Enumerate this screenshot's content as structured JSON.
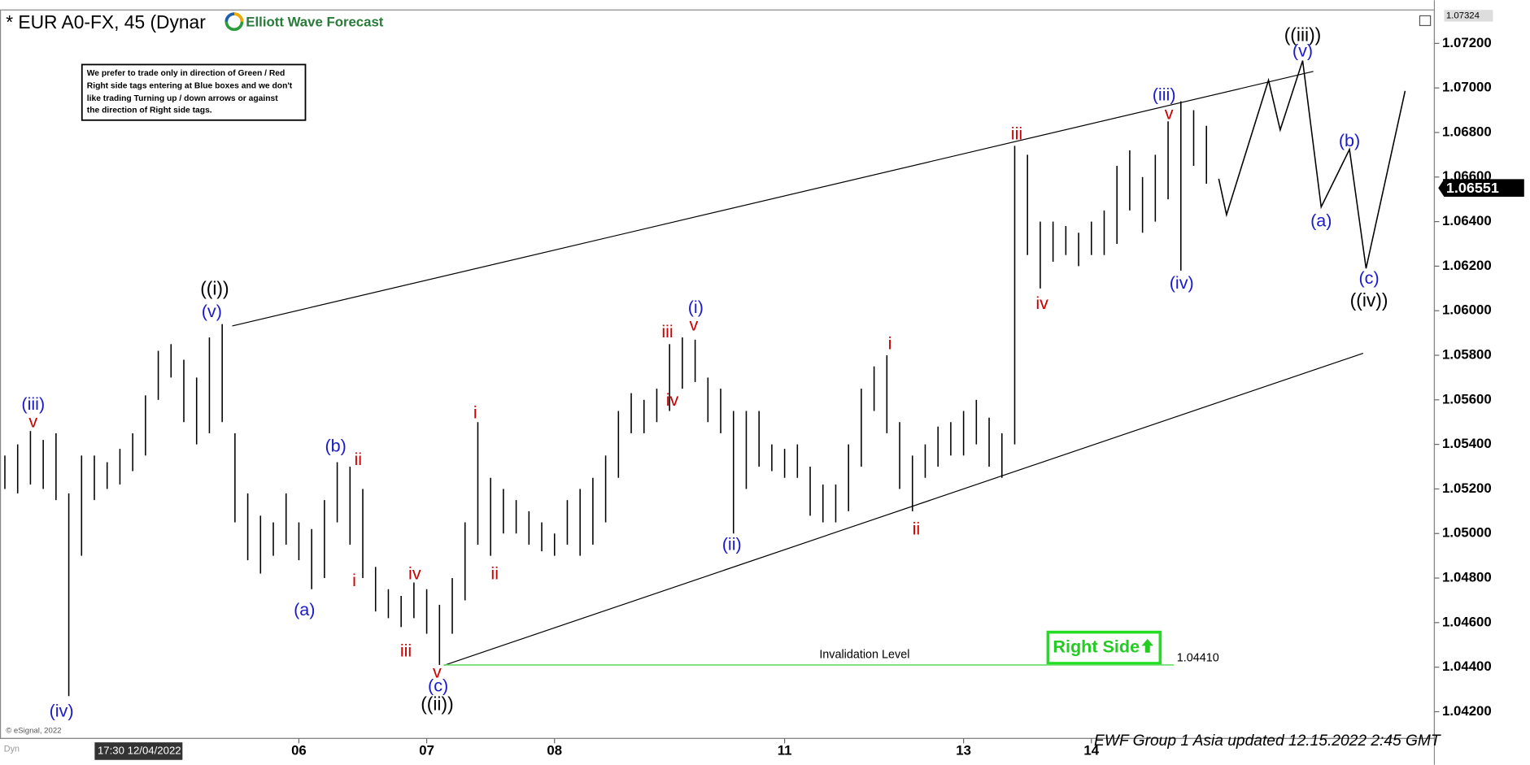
{
  "chart_data": {
    "type": "hilo",
    "title": "* EUR A0-FX, 45 (Dynar",
    "logo_text": "Elliott Wave Forecast",
    "note": [
      "We prefer to trade only in direction of Green / Red",
      "Right side tags entering at Blue boxes and we don't",
      "like trading Turning up / down arrows or against",
      "the direction of Right side tags."
    ],
    "bar_color": "#000000",
    "categories": [
      null,
      null,
      null,
      null,
      null,
      null,
      null,
      null,
      null,
      null,
      null,
      null,
      null,
      null,
      null,
      null,
      null,
      null,
      null,
      null,
      null,
      null,
      null,
      "06",
      null,
      null,
      null,
      null,
      null,
      null,
      null,
      null,
      null,
      "07",
      null,
      null,
      null,
      null,
      null,
      null,
      null,
      null,
      null,
      "08",
      null,
      null,
      null,
      null,
      null,
      null,
      null,
      null,
      null,
      null,
      null,
      null,
      null,
      null,
      null,
      null,
      null,
      "11",
      null,
      null,
      null,
      null,
      null,
      null,
      null,
      null,
      null,
      null,
      null,
      null,
      null,
      "13",
      null,
      null,
      null,
      null,
      null,
      null,
      null,
      null,
      null,
      "14",
      null,
      null,
      null,
      null,
      null,
      null,
      null,
      null,
      null
    ],
    "high": [
      1.0535,
      1.054,
      1.0546,
      1.0542,
      1.0545,
      1.0518,
      1.0535,
      1.0535,
      1.0532,
      1.0538,
      1.0545,
      1.0562,
      1.0582,
      1.0585,
      1.0578,
      1.057,
      1.0588,
      1.0594,
      1.0545,
      1.0518,
      1.0508,
      1.0505,
      1.0518,
      1.0505,
      1.0502,
      1.0515,
      1.0532,
      1.053,
      1.052,
      1.0485,
      1.0475,
      1.0472,
      1.0478,
      1.0475,
      1.0468,
      1.048,
      1.0505,
      1.055,
      1.0525,
      1.052,
      1.0515,
      1.051,
      1.0505,
      1.05,
      1.0515,
      1.052,
      1.0525,
      1.0535,
      1.0555,
      1.0563,
      1.056,
      1.0565,
      1.0585,
      1.0588,
      1.0587,
      1.057,
      1.0565,
      1.0555,
      1.0555,
      1.0555,
      1.054,
      1.0538,
      1.054,
      1.053,
      1.0522,
      1.0522,
      1.054,
      1.0565,
      1.0575,
      1.058,
      1.055,
      1.0535,
      1.054,
      1.0548,
      1.055,
      1.0555,
      1.056,
      1.0552,
      1.0545,
      1.0674,
      1.067,
      1.064,
      1.064,
      1.0638,
      1.0635,
      1.064,
      1.0645,
      1.0665,
      1.0672,
      1.066,
      1.067,
      1.0685,
      1.0694,
      1.069,
      1.0683
    ],
    "low": [
      1.052,
      1.0518,
      1.0522,
      1.052,
      1.0515,
      1.0427,
      1.049,
      1.0515,
      1.052,
      1.0522,
      1.0528,
      1.0535,
      1.056,
      1.057,
      1.055,
      1.054,
      1.0545,
      1.055,
      1.0505,
      1.0488,
      1.0482,
      1.049,
      1.0495,
      1.0488,
      1.0475,
      1.048,
      1.0505,
      1.0495,
      1.048,
      1.0465,
      1.0462,
      1.0458,
      1.0462,
      1.0455,
      1.0441,
      1.0455,
      1.047,
      1.0495,
      1.049,
      1.05,
      1.05,
      1.0495,
      1.0492,
      1.049,
      1.0495,
      1.049,
      1.0495,
      1.0505,
      1.0525,
      1.0545,
      1.0545,
      1.055,
      1.0555,
      1.0565,
      1.0568,
      1.055,
      1.0545,
      1.05,
      1.052,
      1.053,
      1.0528,
      1.0525,
      1.0525,
      1.0508,
      1.0505,
      1.0505,
      1.051,
      1.053,
      1.0555,
      1.0545,
      1.052,
      1.051,
      1.0525,
      1.053,
      1.0535,
      1.0535,
      1.054,
      1.053,
      1.0525,
      1.054,
      1.0625,
      1.061,
      1.0622,
      1.0625,
      1.062,
      1.0625,
      1.0625,
      1.063,
      1.0645,
      1.0635,
      1.064,
      1.065,
      1.0618,
      1.0665,
      1.0657
    ],
    "ylim": [
      1.0408,
      1.0735
    ],
    "yticks": [
      {
        "value": 1.042,
        "label": "1.04200"
      },
      {
        "value": 1.044,
        "label": "1.04400"
      },
      {
        "value": 1.046,
        "label": "1.04600"
      },
      {
        "value": 1.048,
        "label": "1.04800"
      },
      {
        "value": 1.05,
        "label": "1.05000"
      },
      {
        "value": 1.052,
        "label": "1.05200"
      },
      {
        "value": 1.054,
        "label": "1.05400"
      },
      {
        "value": 1.056,
        "label": "1.05600"
      },
      {
        "value": 1.058,
        "label": "1.05800"
      },
      {
        "value": 1.06,
        "label": "1.06000"
      },
      {
        "value": 1.062,
        "label": "1.06200"
      },
      {
        "value": 1.064,
        "label": "1.06400"
      },
      {
        "value": 1.066,
        "label": "1.06600"
      },
      {
        "value": 1.068,
        "label": "1.06800"
      },
      {
        "value": 1.07,
        "label": "1.07000"
      },
      {
        "value": 1.072,
        "label": "1.07200"
      }
    ],
    "scale_top": {
      "value": 1.07324,
      "label": "1.07324"
    },
    "last_price": {
      "value": 1.06551,
      "label": "1.06551"
    },
    "invalidation": {
      "label": "Invalidation Level",
      "value": 1.0441,
      "value_label": "1.04410",
      "color": "#66dd66"
    },
    "right_side_label": "Right Side",
    "annotations": [
      {
        "text": "(iii)",
        "color": "#1a1acc"
      },
      {
        "text": "v",
        "color": "#cc0000"
      },
      {
        "text": "(iv)",
        "color": "#1a1acc"
      },
      {
        "text": "((i))",
        "color": "#000000"
      },
      {
        "text": "(v)",
        "color": "#1a1acc"
      },
      {
        "text": "(a)",
        "color": "#1a1acc"
      },
      {
        "text": "(b)",
        "color": "#1a1acc"
      },
      {
        "text": "ii",
        "color": "#cc0000"
      },
      {
        "text": "i",
        "color": "#cc0000"
      },
      {
        "text": "iv",
        "color": "#cc0000"
      },
      {
        "text": "iii",
        "color": "#cc0000"
      },
      {
        "text": "v",
        "color": "#cc0000"
      },
      {
        "text": "(c)",
        "color": "#1a1acc"
      },
      {
        "text": "((ii))",
        "color": "#000000"
      },
      {
        "text": "i",
        "color": "#cc0000"
      },
      {
        "text": "ii",
        "color": "#cc0000"
      },
      {
        "text": "iii",
        "color": "#cc0000"
      },
      {
        "text": "iv",
        "color": "#cc0000"
      },
      {
        "text": "v",
        "color": "#cc0000"
      },
      {
        "text": "(i)",
        "color": "#1a1acc"
      },
      {
        "text": "(ii)",
        "color": "#1a1acc"
      },
      {
        "text": "i",
        "color": "#cc0000"
      },
      {
        "text": "ii",
        "color": "#cc0000"
      },
      {
        "text": "iii",
        "color": "#cc0000"
      },
      {
        "text": "iv",
        "color": "#cc0000"
      },
      {
        "text": "(iii)",
        "color": "#1a1acc"
      },
      {
        "text": "v",
        "color": "#cc0000"
      },
      {
        "text": "(iv)",
        "color": "#1a1acc"
      },
      {
        "text": "((iii))",
        "color": "#000000"
      },
      {
        "text": "(v)",
        "color": "#1a1acc"
      },
      {
        "text": "(b)",
        "color": "#1a1acc"
      },
      {
        "text": "(a)",
        "color": "#1a1acc"
      },
      {
        "text": "(c)",
        "color": "#1a1acc"
      },
      {
        "text": "((iv))",
        "color": "#000000"
      }
    ],
    "cursor_label": "17:30 12/04/2022",
    "copyright": "© eSignal, 2022",
    "corner_label": "Dyn",
    "footer": "EWF Group 1 Asia updated 12.15.2022 2:45 GMT"
  }
}
